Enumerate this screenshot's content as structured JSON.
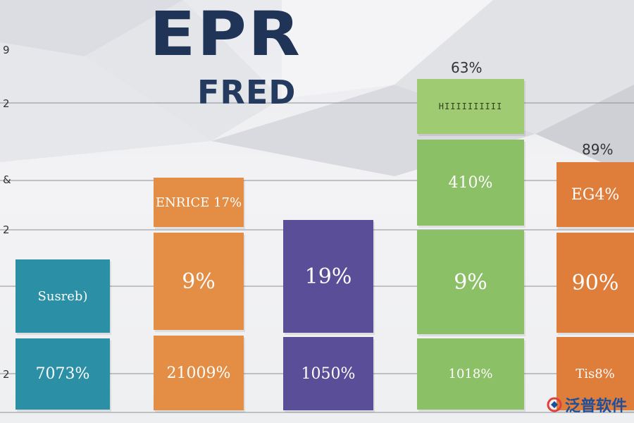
{
  "title": "EPR",
  "subtitle": "FRED",
  "y_ticks": [
    "9",
    "2",
    "&",
    "2",
    "2"
  ],
  "watermark": {
    "text": "泛普软件"
  },
  "colors": {
    "teal": "#2b8fa6",
    "orange": "#e38d45",
    "purple": "#5a4e99",
    "green": "#8cc067",
    "orange2": "#df7d3a",
    "title": "#1f3457"
  },
  "chart_data": {
    "type": "bar",
    "title": "EPR",
    "subtitle": "FRED",
    "xlabel": "",
    "ylabel": "",
    "grid": true,
    "bars": [
      {
        "color": "teal",
        "segments": [
          "7073%",
          "Susreb)"
        ],
        "above": ""
      },
      {
        "color": "orange",
        "segments": [
          "21009%",
          "9%",
          "ENRICE 17%"
        ],
        "above": ""
      },
      {
        "color": "purple",
        "segments": [
          "1050%",
          "19%"
        ],
        "above": ""
      },
      {
        "color": "green",
        "segments": [
          "1018%",
          "9%",
          "410%",
          "HIIIIIIIIII"
        ],
        "above": "63%"
      },
      {
        "color": "orange2",
        "segments": [
          "Tis8%",
          "90%",
          "EG4%"
        ],
        "above": "89%"
      }
    ]
  }
}
